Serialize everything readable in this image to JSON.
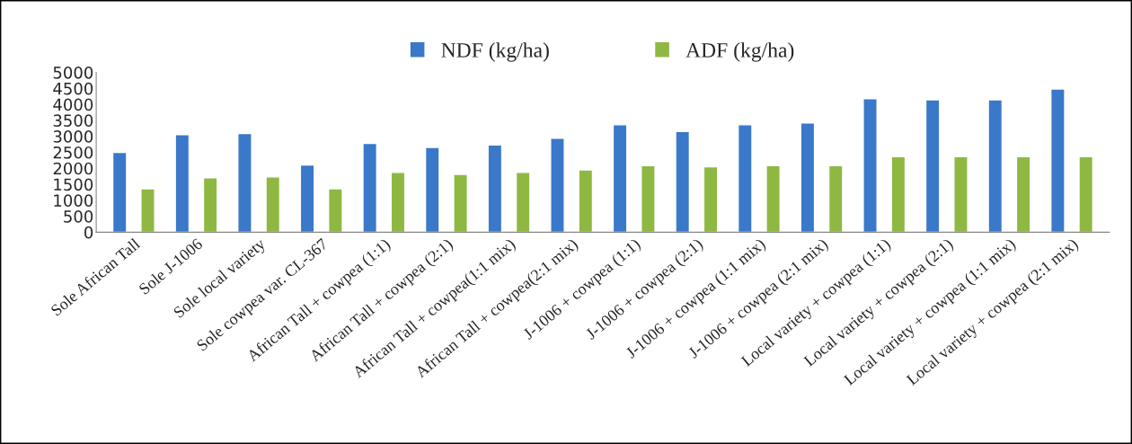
{
  "chart_data": {
    "type": "bar",
    "categories": [
      "Sole African Tall",
      "Sole J-1006",
      "Sole local variety",
      "Sole cowpea var. CL-367",
      "African Tall + cowpea (1:1)",
      "African Tall + cowpea (2:1)",
      "African Tall + cowpea(1:1 mix)",
      "African Tall + cowpea(2:1 mix)",
      "J-1006 + cowpea (1:1)",
      "J-1006 + cowpea (2:1)",
      "J-1006 + cowpea (1:1 mix)",
      "J-1006 + cowpea (2:1 mix)",
      "Local variety + cowpea (1:1)",
      "Local variety + cowpea (2:1)",
      "Local variety + cowpea (1:1 mix)",
      "Local variety + cowpea (2:1 mix)"
    ],
    "series": [
      {
        "name": "NDF (kg/ha)",
        "color": "#3a78c9",
        "values": [
          2500,
          3050,
          3090,
          2100,
          2780,
          2650,
          2730,
          2940,
          3360,
          3150,
          3360,
          3420,
          4180,
          4140,
          4140,
          4480
        ]
      },
      {
        "name": "ADF (kg/ha)",
        "color": "#8fb843",
        "values": [
          1360,
          1700,
          1730,
          1360,
          1870,
          1810,
          1870,
          1950,
          2080,
          2050,
          2080,
          2080,
          2360,
          2360,
          2360,
          2360
        ]
      }
    ],
    "ylim": [
      0,
      5000
    ],
    "yticks": [
      0,
      500,
      1000,
      1500,
      2000,
      2500,
      3000,
      3500,
      4000,
      4500,
      5000
    ],
    "legend": "top"
  }
}
